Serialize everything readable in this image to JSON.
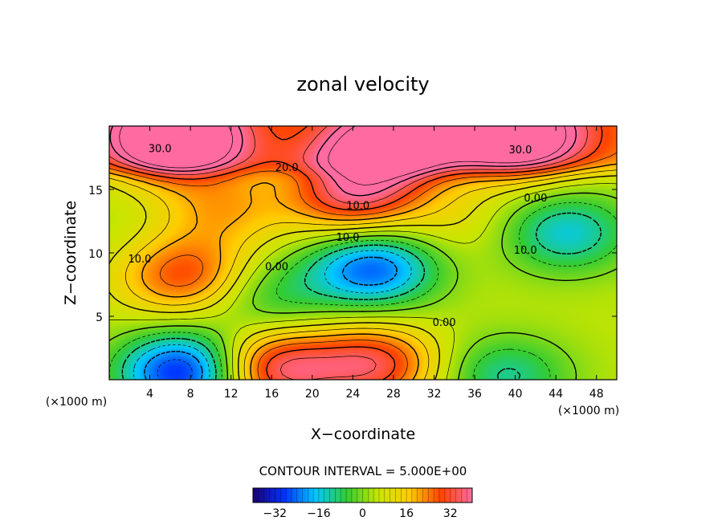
{
  "chart_data": {
    "type": "heatmap",
    "title": "zonal velocity",
    "xlabel": "X−coordinate",
    "ylabel": "Z−coordinate",
    "x_unit": "(×1000 m)",
    "y_unit": "(×1000 m)",
    "xlim": [
      0,
      50
    ],
    "ylim": [
      0,
      20
    ],
    "x_ticks": [
      4,
      8,
      12,
      16,
      20,
      24,
      28,
      32,
      36,
      40,
      44,
      48
    ],
    "y_ticks": [
      5,
      10,
      15
    ],
    "contour_interval_text": "CONTOUR INTERVAL = 5.000E+00",
    "contour_interval": 5,
    "colorbar": {
      "range": [
        -40,
        40
      ],
      "ticks": [
        -32,
        -16,
        0,
        16,
        32
      ],
      "colors": [
        "#1a0070",
        "#0033ff",
        "#00c8ff",
        "#33cc33",
        "#c8e600",
        "#ffcc00",
        "#ff4400",
        "#ff6aa0"
      ]
    },
    "contour_labels": [
      {
        "text": "30.0",
        "x": 5,
        "z": 18.2
      },
      {
        "text": "30.0",
        "x": 40.5,
        "z": 18.1
      },
      {
        "text": "20.0",
        "x": 17.5,
        "z": 16.7
      },
      {
        "text": "10.0",
        "x": 24.5,
        "z": 13.7
      },
      {
        "text": "0.00",
        "x": 42,
        "z": 14.3
      },
      {
        "text": "10.0",
        "x": 3,
        "z": 9.5
      },
      {
        "text": "10.0",
        "x": 23.5,
        "z": 11.2
      },
      {
        "text": "10.0",
        "x": 41,
        "z": 10.2
      },
      {
        "text": "0.00",
        "x": 16.5,
        "z": 8.9
      },
      {
        "text": "0.00",
        "x": 33,
        "z": 4.5
      }
    ],
    "features": [
      {
        "x": 6.5,
        "z": 19.1,
        "u": 45
      },
      {
        "x": 40,
        "z": 19.3,
        "u": 40
      },
      {
        "x": 28,
        "z": 18.5,
        "u": 35
      },
      {
        "x": 7.5,
        "z": 8.2,
        "u": 24
      },
      {
        "x": 24,
        "z": 14.6,
        "u": 30
      },
      {
        "x": 26,
        "z": 8.8,
        "u": -30
      },
      {
        "x": 45,
        "z": 11.6,
        "u": -20
      },
      {
        "x": 7.5,
        "z": 0.6,
        "u": -38
      },
      {
        "x": 15.5,
        "z": 6.5,
        "u": -12
      },
      {
        "x": 26,
        "z": 1.2,
        "u": 28
      },
      {
        "x": 16,
        "z": 0.8,
        "u": 32
      },
      {
        "x": 39,
        "z": 0.3,
        "u": -16
      },
      {
        "x": 1,
        "z": 12,
        "u": -2
      },
      {
        "x": 11,
        "z": 13.5,
        "u": 14
      },
      {
        "x": 34,
        "z": 12.5,
        "u": 6
      }
    ]
  }
}
